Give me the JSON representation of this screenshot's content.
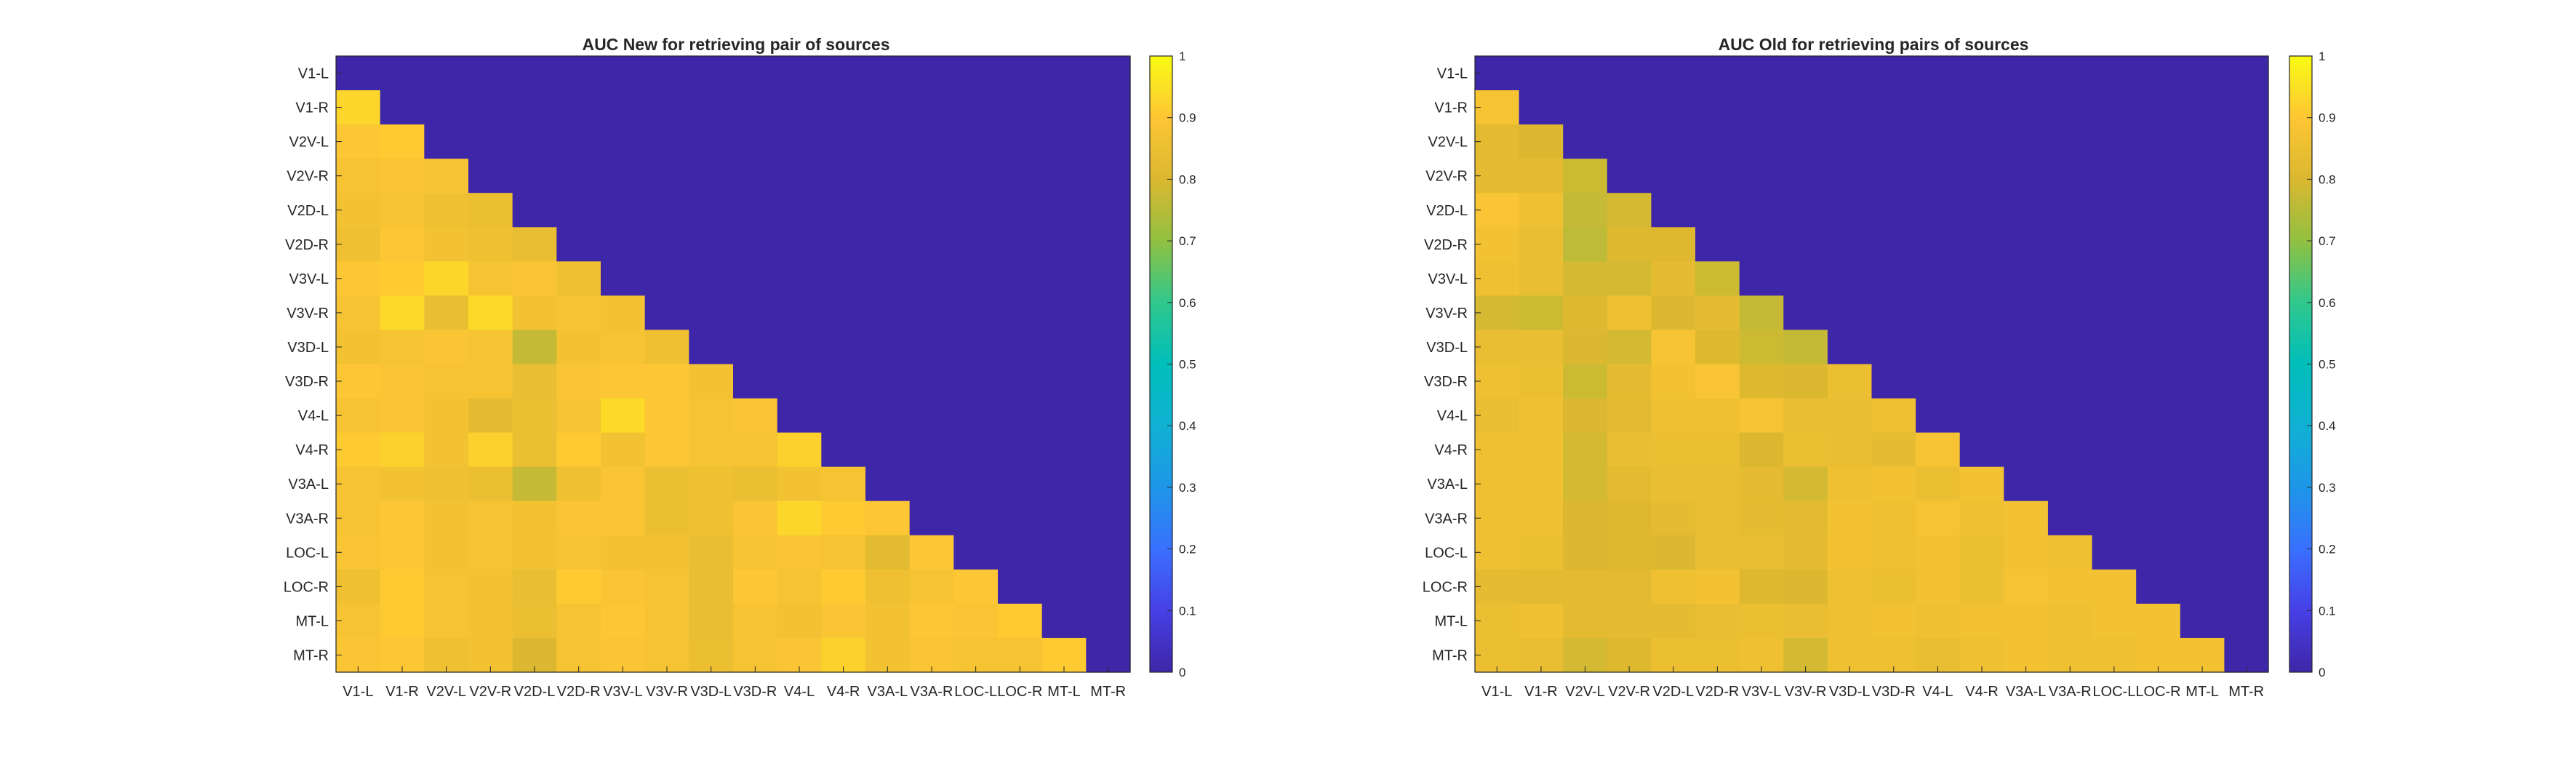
{
  "chart_data": [
    {
      "type": "heatmap",
      "title": "AUC New for retrieving pair of sources",
      "labels": [
        "V1-L",
        "V1-R",
        "V2V-L",
        "V2V-R",
        "V2D-L",
        "V2D-R",
        "V3V-L",
        "V3V-R",
        "V3D-L",
        "V3D-R",
        "V4-L",
        "V4-R",
        "V3A-L",
        "V3A-R",
        "LOC-L",
        "LOC-R",
        "MT-L",
        "MT-R"
      ],
      "clim": [
        0,
        1
      ],
      "colormap": "parula",
      "colorbar_ticks": [
        "0",
        "0.1",
        "0.2",
        "0.3",
        "0.4",
        "0.5",
        "0.6",
        "0.7",
        "0.8",
        "0.9",
        "1"
      ],
      "upper_triangle_and_diagonal_value": 0,
      "lower_triangle_rows": [
        [],
        [
          0.93
        ],
        [
          0.9,
          0.91
        ],
        [
          0.88,
          0.89,
          0.88
        ],
        [
          0.87,
          0.88,
          0.86,
          0.85
        ],
        [
          0.86,
          0.9,
          0.87,
          0.86,
          0.84
        ],
        [
          0.9,
          0.91,
          0.93,
          0.88,
          0.89,
          0.86
        ],
        [
          0.88,
          0.94,
          0.84,
          0.94,
          0.87,
          0.88,
          0.87
        ],
        [
          0.87,
          0.88,
          0.89,
          0.88,
          0.77,
          0.87,
          0.88,
          0.86
        ],
        [
          0.9,
          0.89,
          0.88,
          0.88,
          0.84,
          0.89,
          0.9,
          0.9,
          0.87
        ],
        [
          0.88,
          0.89,
          0.87,
          0.83,
          0.85,
          0.88,
          0.94,
          0.9,
          0.88,
          0.89
        ],
        [
          0.91,
          0.92,
          0.87,
          0.92,
          0.85,
          0.91,
          0.87,
          0.9,
          0.88,
          0.88,
          0.92
        ],
        [
          0.88,
          0.87,
          0.86,
          0.85,
          0.77,
          0.86,
          0.89,
          0.85,
          0.86,
          0.85,
          0.87,
          0.88
        ],
        [
          0.88,
          0.9,
          0.87,
          0.88,
          0.87,
          0.89,
          0.89,
          0.85,
          0.86,
          0.89,
          0.93,
          0.91,
          0.9
        ],
        [
          0.89,
          0.9,
          0.87,
          0.88,
          0.87,
          0.88,
          0.87,
          0.87,
          0.84,
          0.88,
          0.89,
          0.88,
          0.82,
          0.9
        ],
        [
          0.86,
          0.91,
          0.88,
          0.87,
          0.84,
          0.91,
          0.89,
          0.88,
          0.84,
          0.9,
          0.88,
          0.91,
          0.86,
          0.88,
          0.9
        ],
        [
          0.88,
          0.91,
          0.88,
          0.87,
          0.85,
          0.88,
          0.9,
          0.88,
          0.84,
          0.88,
          0.87,
          0.89,
          0.87,
          0.9,
          0.89,
          0.91
        ],
        [
          0.89,
          0.9,
          0.86,
          0.87,
          0.8,
          0.88,
          0.89,
          0.88,
          0.85,
          0.88,
          0.89,
          0.92,
          0.87,
          0.89,
          0.88,
          0.88,
          0.91
        ]
      ]
    },
    {
      "type": "heatmap",
      "title": "AUC Old for retrieving pairs of sources",
      "labels": [
        "V1-L",
        "V1-R",
        "V2V-L",
        "V2V-R",
        "V2D-L",
        "V2D-R",
        "V3V-L",
        "V3V-R",
        "V3D-L",
        "V3D-R",
        "V4-L",
        "V4-R",
        "V3A-L",
        "V3A-R",
        "LOC-L",
        "LOC-R",
        "MT-L",
        "MT-R"
      ],
      "clim": [
        0,
        1
      ],
      "colormap": "parula",
      "colorbar_ticks": [
        "0",
        "0.1",
        "0.2",
        "0.3",
        "0.4",
        "0.5",
        "0.6",
        "0.7",
        "0.8",
        "0.9",
        "1"
      ],
      "upper_triangle_and_diagonal_value": 0,
      "lower_triangle_rows": [
        [],
        [
          0.88
        ],
        [
          0.82,
          0.8
        ],
        [
          0.83,
          0.82,
          0.78
        ],
        [
          0.89,
          0.86,
          0.77,
          0.79
        ],
        [
          0.87,
          0.84,
          0.76,
          0.81,
          0.81
        ],
        [
          0.86,
          0.84,
          0.79,
          0.79,
          0.83,
          0.78
        ],
        [
          0.79,
          0.78,
          0.81,
          0.86,
          0.8,
          0.83,
          0.77
        ],
        [
          0.84,
          0.84,
          0.8,
          0.79,
          0.88,
          0.81,
          0.78,
          0.77
        ],
        [
          0.86,
          0.85,
          0.78,
          0.83,
          0.87,
          0.89,
          0.81,
          0.8,
          0.85
        ],
        [
          0.84,
          0.86,
          0.8,
          0.82,
          0.86,
          0.86,
          0.88,
          0.84,
          0.84,
          0.86
        ],
        [
          0.86,
          0.86,
          0.79,
          0.84,
          0.85,
          0.85,
          0.8,
          0.85,
          0.84,
          0.83,
          0.88
        ],
        [
          0.86,
          0.86,
          0.79,
          0.82,
          0.84,
          0.84,
          0.83,
          0.79,
          0.86,
          0.87,
          0.85,
          0.87
        ],
        [
          0.86,
          0.86,
          0.8,
          0.81,
          0.83,
          0.84,
          0.83,
          0.82,
          0.87,
          0.86,
          0.88,
          0.86,
          0.87
        ],
        [
          0.86,
          0.85,
          0.8,
          0.81,
          0.8,
          0.84,
          0.84,
          0.83,
          0.87,
          0.86,
          0.87,
          0.85,
          0.87,
          0.86
        ],
        [
          0.83,
          0.82,
          0.82,
          0.82,
          0.86,
          0.87,
          0.81,
          0.8,
          0.86,
          0.85,
          0.87,
          0.85,
          0.88,
          0.87,
          0.87
        ],
        [
          0.85,
          0.86,
          0.82,
          0.83,
          0.83,
          0.84,
          0.85,
          0.84,
          0.86,
          0.87,
          0.86,
          0.87,
          0.87,
          0.86,
          0.87,
          0.87
        ],
        [
          0.85,
          0.84,
          0.79,
          0.81,
          0.85,
          0.85,
          0.86,
          0.79,
          0.86,
          0.86,
          0.84,
          0.86,
          0.87,
          0.86,
          0.86,
          0.87,
          0.87
        ]
      ]
    }
  ]
}
